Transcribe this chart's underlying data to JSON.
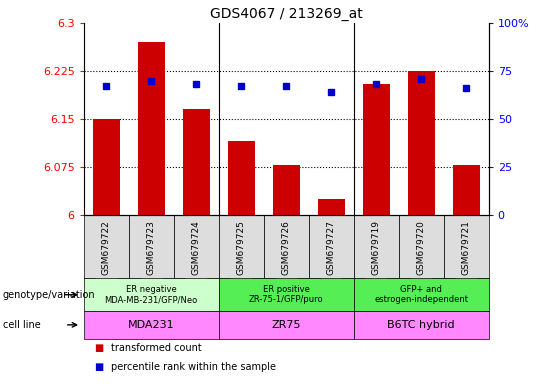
{
  "title": "GDS4067 / 213269_at",
  "samples": [
    "GSM679722",
    "GSM679723",
    "GSM679724",
    "GSM679725",
    "GSM679726",
    "GSM679727",
    "GSM679719",
    "GSM679720",
    "GSM679721"
  ],
  "transformed_count": [
    6.15,
    6.27,
    6.165,
    6.115,
    6.078,
    6.025,
    6.205,
    6.225,
    6.078
  ],
  "percentile_rank": [
    67,
    70,
    68,
    67,
    67,
    64,
    68,
    71,
    66
  ],
  "ylim_left": [
    6.0,
    6.3
  ],
  "ylim_right": [
    0,
    100
  ],
  "yticks_left": [
    6.0,
    6.075,
    6.15,
    6.225,
    6.3
  ],
  "ytick_labels_left": [
    "6",
    "6.075",
    "6.15",
    "6.225",
    "6.3"
  ],
  "yticks_right": [
    0,
    25,
    50,
    75,
    100
  ],
  "ytick_labels_right": [
    "0",
    "25",
    "50",
    "75",
    "100%"
  ],
  "bar_color": "#cc0000",
  "dot_color": "#0000cc",
  "bar_bottom": 6.0,
  "genotype_groups": [
    {
      "label": "ER negative\nMDA-MB-231/GFP/Neo",
      "start": 0,
      "end": 3,
      "color": "#ccffcc"
    },
    {
      "label": "ER positive\nZR-75-1/GFP/puro",
      "start": 3,
      "end": 6,
      "color": "#55ee55"
    },
    {
      "label": "GFP+ and\nestrogen-independent",
      "start": 6,
      "end": 9,
      "color": "#55ee55"
    }
  ],
  "cell_line_groups": [
    {
      "label": "MDA231",
      "start": 0,
      "end": 3,
      "color": "#ff88ff"
    },
    {
      "label": "ZR75",
      "start": 3,
      "end": 6,
      "color": "#ff88ff"
    },
    {
      "label": "B6TC hybrid",
      "start": 6,
      "end": 9,
      "color": "#ff88ff"
    }
  ],
  "legend_red_label": "transformed count",
  "legend_blue_label": "percentile rank within the sample",
  "genotype_row_label": "genotype/variation",
  "cell_line_row_label": "cell line",
  "xtick_bg_color": "#dddddd"
}
